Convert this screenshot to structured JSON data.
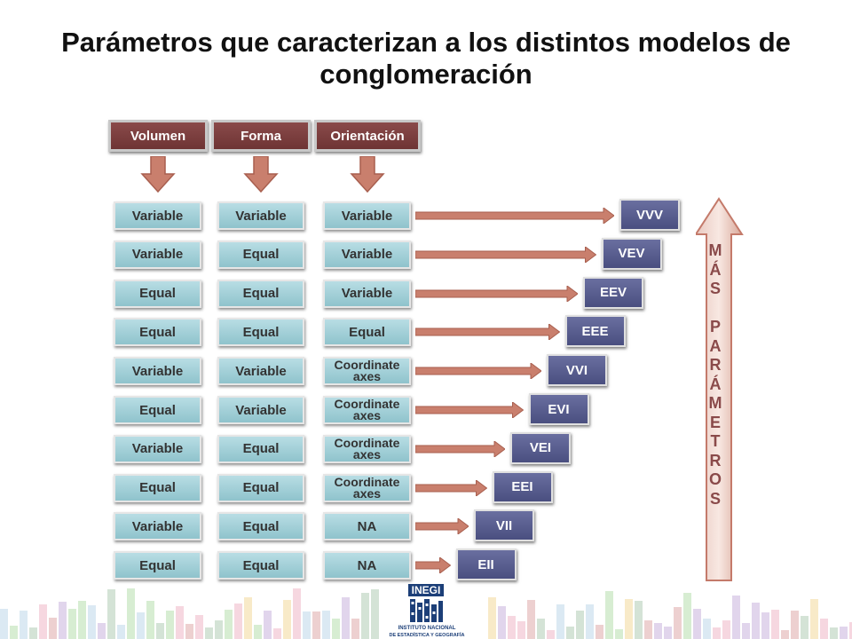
{
  "title": "Parámetros que caracterizan a los distintos modelos de conglomeración",
  "headers": [
    "Volumen",
    "Forma",
    "Orientación"
  ],
  "rows": [
    {
      "volumen": "Variable",
      "forma": "Variable",
      "orientacion": "Variable",
      "model": "VVV"
    },
    {
      "volumen": "Variable",
      "forma": "Equal",
      "orientacion": "Variable",
      "model": "VEV"
    },
    {
      "volumen": "Equal",
      "forma": "Equal",
      "orientacion": "Variable",
      "model": "EEV"
    },
    {
      "volumen": "Equal",
      "forma": "Equal",
      "orientacion": "Equal",
      "model": "EEE"
    },
    {
      "volumen": "Variable",
      "forma": "Variable",
      "orientacion": "Coordinate axes",
      "model": "VVI"
    },
    {
      "volumen": "Equal",
      "forma": "Variable",
      "orientacion": "Coordinate axes",
      "model": "EVI"
    },
    {
      "volumen": "Variable",
      "forma": "Equal",
      "orientacion": "Coordinate axes",
      "model": "VEI"
    },
    {
      "volumen": "Equal",
      "forma": "Equal",
      "orientacion": "Coordinate axes",
      "model": "EEI"
    },
    {
      "volumen": "Variable",
      "forma": "Equal",
      "orientacion": "NA",
      "model": "VII"
    },
    {
      "volumen": "Equal",
      "forma": "Equal",
      "orientacion": "NA",
      "model": "EII"
    }
  ],
  "side_label": "MÁS PARÁMETROS",
  "logo": {
    "brand": "INEGI",
    "line1": "INSTITUTO NACIONAL",
    "line2": "DE ESTADÍSTICA Y GEOGRAFÍA"
  },
  "colors": {
    "header": "#7a3f3f",
    "cell": "#a6d2da",
    "model": "#5a5f90",
    "arrow": "#c97f6d"
  }
}
